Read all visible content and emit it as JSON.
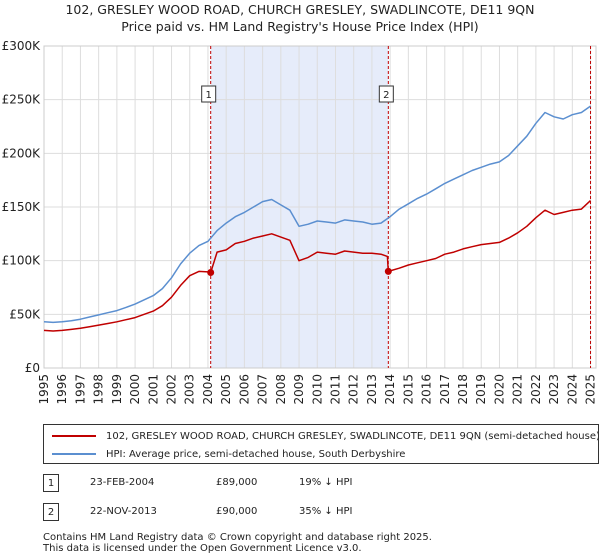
{
  "title_line1": "102, GRESLEY WOOD ROAD, CHURCH GRESLEY, SWADLINCOTE, DE11 9QN",
  "title_line2": "Price paid vs. HM Land Registry's House Price Index (HPI)",
  "colors": {
    "property": "#c00000",
    "hpi": "#5b8fd0",
    "shade": "#e6ecfa",
    "grid": "#dddddd",
    "marker_line": "#c00000"
  },
  "chart_data": {
    "type": "line",
    "xlim": [
      1995.0,
      2025.3
    ],
    "ylim": [
      0,
      300000
    ],
    "y_ticks": [
      0,
      50000,
      100000,
      150000,
      200000,
      250000,
      300000
    ],
    "y_tick_labels": [
      "£0",
      "£50K",
      "£100K",
      "£150K",
      "£200K",
      "£250K",
      "£300K"
    ],
    "x_ticks": [
      1995,
      1996,
      1997,
      1998,
      1999,
      2000,
      2001,
      2002,
      2003,
      2004,
      2005,
      2006,
      2007,
      2008,
      2009,
      2010,
      2011,
      2012,
      2013,
      2014,
      2015,
      2016,
      2017,
      2018,
      2019,
      2020,
      2021,
      2022,
      2023,
      2024,
      2025
    ],
    "x_tick_labels": [
      "1995",
      "1996",
      "1997",
      "1998",
      "1999",
      "2000",
      "2001",
      "2002",
      "2003",
      "2004",
      "2005",
      "2006",
      "2007",
      "2008",
      "2009",
      "2010",
      "2011",
      "2012",
      "2013",
      "2014",
      "2015",
      "2016",
      "2017",
      "2018",
      "2019",
      "2020",
      "2021",
      "2022",
      "2023",
      "2024",
      "2025"
    ],
    "shaded_range": [
      2004.15,
      2013.9
    ],
    "series": [
      {
        "name": "102, GRESLEY WOOD ROAD, CHURCH GRESLEY, SWADLINCOTE, DE11 9QN (semi-detached house)",
        "key": "property",
        "x": [
          1995.0,
          1995.5,
          1996.0,
          1996.5,
          1997.0,
          1997.5,
          1998.0,
          1998.5,
          1999.0,
          1999.5,
          2000.0,
          2000.5,
          2001.0,
          2001.5,
          2002.0,
          2002.5,
          2003.0,
          2003.5,
          2004.0,
          2004.15,
          2004.5,
          2005.0,
          2005.5,
          2006.0,
          2006.5,
          2007.0,
          2007.5,
          2008.0,
          2008.5,
          2009.0,
          2009.5,
          2010.0,
          2010.5,
          2011.0,
          2011.5,
          2012.0,
          2012.5,
          2013.0,
          2013.5,
          2013.85,
          2013.9,
          2014.5,
          2015.0,
          2015.5,
          2016.0,
          2016.5,
          2017.0,
          2017.5,
          2018.0,
          2018.5,
          2019.0,
          2019.5,
          2020.0,
          2020.5,
          2021.0,
          2021.5,
          2022.0,
          2022.5,
          2023.0,
          2023.5,
          2024.0,
          2024.5,
          2025.0
        ],
        "y": [
          35000,
          34500,
          35000,
          36000,
          37000,
          38500,
          40000,
          41500,
          43000,
          45000,
          47000,
          50000,
          53000,
          58000,
          66000,
          77000,
          86000,
          90000,
          89500,
          89000,
          108000,
          110000,
          116000,
          118000,
          121000,
          123000,
          125000,
          122000,
          119000,
          100000,
          103000,
          108000,
          107000,
          106000,
          109000,
          108000,
          107000,
          107000,
          106000,
          104000,
          90000,
          93000,
          96000,
          98000,
          100000,
          102000,
          106000,
          108000,
          111000,
          113000,
          115000,
          116000,
          117000,
          121000,
          126000,
          132000,
          140000,
          147000,
          143000,
          145000,
          147000,
          148000,
          156000
        ]
      },
      {
        "name": "HPI: Average price, semi-detached house, South Derbyshire",
        "key": "hpi",
        "x": [
          1995.0,
          1995.5,
          1996.0,
          1996.5,
          1997.0,
          1997.5,
          1998.0,
          1998.5,
          1999.0,
          1999.5,
          2000.0,
          2000.5,
          2001.0,
          2001.5,
          2002.0,
          2002.5,
          2003.0,
          2003.5,
          2004.0,
          2004.5,
          2005.0,
          2005.5,
          2006.0,
          2006.5,
          2007.0,
          2007.5,
          2008.0,
          2008.5,
          2009.0,
          2009.5,
          2010.0,
          2010.5,
          2011.0,
          2011.5,
          2012.0,
          2012.5,
          2013.0,
          2013.5,
          2014.0,
          2014.5,
          2015.0,
          2015.5,
          2016.0,
          2016.5,
          2017.0,
          2017.5,
          2018.0,
          2018.5,
          2019.0,
          2019.5,
          2020.0,
          2020.5,
          2021.0,
          2021.5,
          2022.0,
          2022.5,
          2023.0,
          2023.5,
          2024.0,
          2024.5,
          2025.0
        ],
        "y": [
          43000,
          42500,
          43000,
          44000,
          45500,
          47500,
          49500,
          51500,
          53500,
          56500,
          59500,
          63500,
          67500,
          74000,
          84000,
          97000,
          107000,
          114000,
          118000,
          128000,
          135000,
          141000,
          145000,
          150000,
          155000,
          157000,
          152000,
          147000,
          132000,
          134000,
          137000,
          136000,
          135000,
          138000,
          137000,
          136000,
          134000,
          135000,
          141000,
          148000,
          153000,
          158000,
          162000,
          167000,
          172000,
          176000,
          180000,
          184000,
          187000,
          190000,
          192000,
          198000,
          207000,
          216000,
          228000,
          238000,
          234000,
          232000,
          236000,
          238000,
          244000
        ]
      }
    ],
    "sales": [
      {
        "label": "1",
        "x": 2004.15,
        "y": 89000
      },
      {
        "label": "2",
        "x": 2013.9,
        "y": 90000
      }
    ]
  },
  "legend": {
    "property_label": "102, GRESLEY WOOD ROAD, CHURCH GRESLEY, SWADLINCOTE, DE11 9QN (semi-detached house)",
    "hpi_label": "HPI: Average price, semi-detached house, South Derbyshire"
  },
  "transactions": [
    {
      "num": "1",
      "date": "23-FEB-2004",
      "price": "£89,000",
      "hpi_diff": "19% ↓ HPI"
    },
    {
      "num": "2",
      "date": "22-NOV-2013",
      "price": "£90,000",
      "hpi_diff": "35% ↓ HPI"
    }
  ],
  "footer": {
    "line1": "Contains HM Land Registry data © Crown copyright and database right 2025.",
    "line2": "This data is licensed under the Open Government Licence v3.0."
  }
}
